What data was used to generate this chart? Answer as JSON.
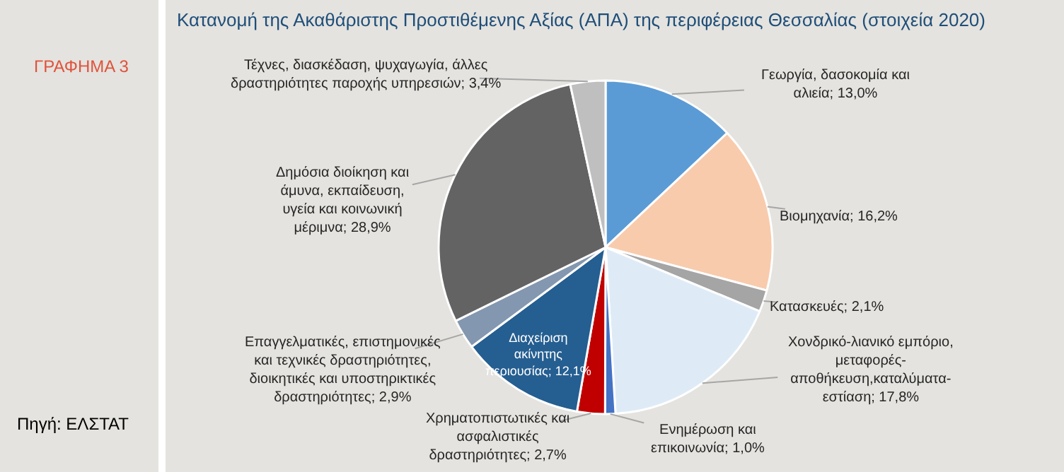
{
  "chart_data": {
    "type": "pie",
    "title": "Κατανομή της Ακαθάριστης Προστιθέμενης Αξίας (ΑΠΑ) της περιφέρειας Θεσσαλίας (στοιχεία 2020)",
    "categories": [
      "Γεωργία, δασοκομία και αλιεία",
      "Βιομηχανία",
      "Κατασκευές",
      "Χονδρικό-λιανικό εμπόριο, μεταφορές-αποθήκευση,καταλύματα-εστίαση",
      "Ενημέρωση και επικοινωνία",
      "Χρηματοπιστωτικές και ασφαλιστικές δραστηριότητες",
      "Διαχείριση ακίνητης περιουσίας",
      "Επαγγελματικές, επιστημονικές και τεχνικές δραστηριότητες, διοικητικές και υποστηρικτικές δραστηριότητες",
      "Δημόσια διοίκηση και άμυνα, εκπαίδευση, υγεία και κοινωνική μέριμνα",
      "Τέχνες, διασκέδαση, ψυχαγωγία, άλλες δραστηριότητες παροχής υπηρεσιών"
    ],
    "values": [
      13.0,
      16.2,
      2.1,
      17.8,
      1.0,
      2.7,
      12.1,
      2.9,
      28.9,
      3.4
    ],
    "value_labels": [
      "13,0%",
      "16,2%",
      "2,1%",
      "17,8%",
      "1,0%",
      "2,7%",
      "12,1%",
      "2,9%",
      "28,9%",
      "3,4%"
    ],
    "colors": [
      "#5b9bd5",
      "#f8cbad",
      "#a5a5a5",
      "#deebf7",
      "#4472c4",
      "#c00000",
      "#255e91",
      "#8497b0",
      "#636363",
      "#bfbfbf"
    ],
    "annotations": [
      "ΓΡΑΦΗΜΑ 3",
      "Πηγή: ΕΛΣΤΑΤ"
    ]
  }
}
